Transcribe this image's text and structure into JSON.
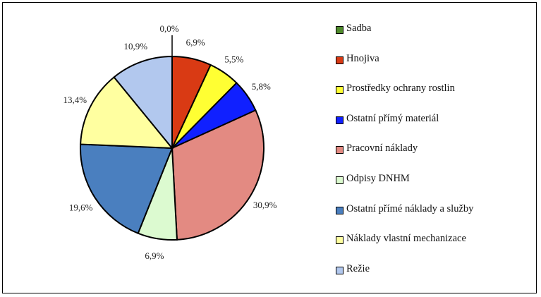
{
  "chart_data": {
    "type": "pie",
    "title": "",
    "legend_position": "right",
    "categories": [
      "Sadba",
      "Hnojiva",
      "Prostředky ochrany rostlin",
      "Ostatní přímý materiál",
      "Pracovní náklady",
      "Odpisy DNHM",
      "Ostatní přímé náklady a služby",
      "Náklady vlastní mechanizace",
      "Režie"
    ],
    "values": [
      0.0,
      6.9,
      5.5,
      5.8,
      30.9,
      6.9,
      19.6,
      13.4,
      10.9
    ],
    "labels": [
      "0,0%",
      "6,9%",
      "5,5%",
      "5,8%",
      "30,9%",
      "6,9%",
      "19,6%",
      "13,4%",
      "10,9%"
    ],
    "colors": [
      "#4f8a2c",
      "#d93a14",
      "#ffff33",
      "#1020ff",
      "#e38a82",
      "#dcfad0",
      "#4a7fbf",
      "#ffffa0",
      "#b2c8ee"
    ]
  }
}
